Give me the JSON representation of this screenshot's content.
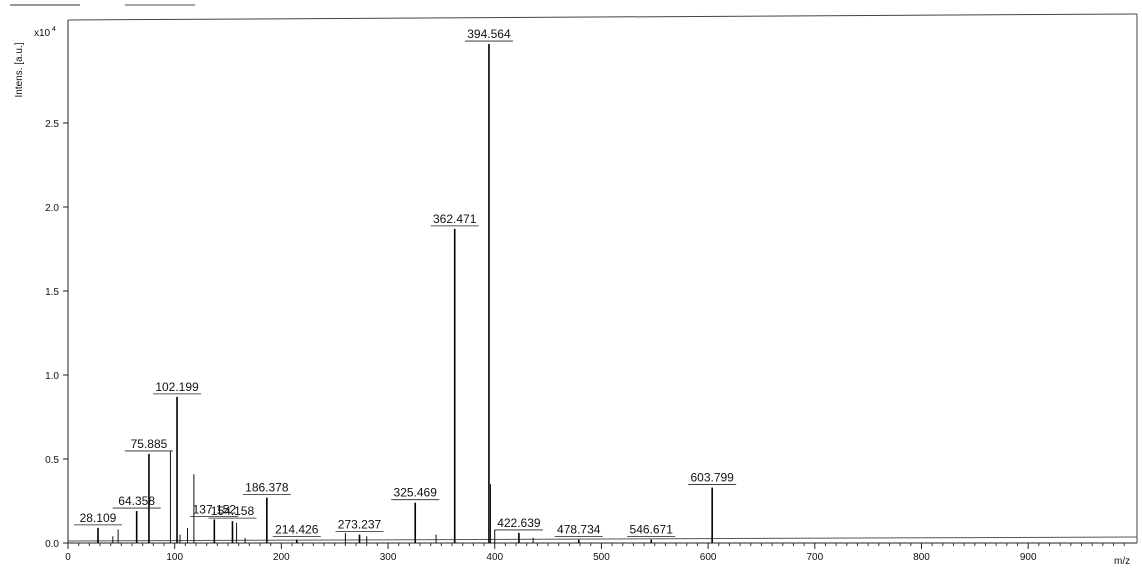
{
  "chart_data": {
    "type": "line",
    "title": "",
    "xlabel": "m/z",
    "ylabel": "Intens. [a.u.]",
    "y_multiplier": "x10",
    "y_multiplier_exp": "4",
    "xlim": [
      0,
      1000
    ],
    "ylim": [
      0,
      3.0
    ],
    "x_ticks": [
      0,
      100,
      200,
      300,
      400,
      500,
      600,
      700,
      800,
      900
    ],
    "x_tick_labels": [
      "0",
      "100",
      "200",
      "300",
      "400",
      "500",
      "600",
      "700",
      "800",
      "900"
    ],
    "y_ticks": [
      0.0,
      0.5,
      1.0,
      1.5,
      2.0,
      2.5
    ],
    "y_tick_labels": [
      "0.0",
      "0.5",
      "1.0",
      "1.5",
      "2.0",
      "2.5"
    ],
    "grid": false,
    "peaks": [
      {
        "mz": 28.109,
        "intensity": 0.09,
        "label": "28.109"
      },
      {
        "mz": 64.358,
        "intensity": 0.19,
        "label": "64.358"
      },
      {
        "mz": 75.885,
        "intensity": 0.53,
        "label": "75.885"
      },
      {
        "mz": 102.199,
        "intensity": 0.87,
        "label": "102.199"
      },
      {
        "mz": 137.152,
        "intensity": 0.14,
        "label": "137.152"
      },
      {
        "mz": 154.158,
        "intensity": 0.13,
        "label": "154.158"
      },
      {
        "mz": 186.378,
        "intensity": 0.27,
        "label": "186.378"
      },
      {
        "mz": 214.426,
        "intensity": 0.02,
        "label": "214.426"
      },
      {
        "mz": 273.237,
        "intensity": 0.05,
        "label": "273.237"
      },
      {
        "mz": 325.469,
        "intensity": 0.24,
        "label": "325.469"
      },
      {
        "mz": 362.471,
        "intensity": 1.87,
        "label": "362.471"
      },
      {
        "mz": 394.564,
        "intensity": 2.97,
        "label": "394.564"
      },
      {
        "mz": 422.639,
        "intensity": 0.06,
        "label": "422.639"
      },
      {
        "mz": 478.734,
        "intensity": 0.02,
        "label": "478.734"
      },
      {
        "mz": 546.671,
        "intensity": 0.02,
        "label": "546.671"
      },
      {
        "mz": 603.799,
        "intensity": 0.33,
        "label": "603.799"
      }
    ],
    "minor_peaks": [
      {
        "mz": 42,
        "intensity": 0.04
      },
      {
        "mz": 47,
        "intensity": 0.08
      },
      {
        "mz": 96,
        "intensity": 0.55
      },
      {
        "mz": 105,
        "intensity": 0.05
      },
      {
        "mz": 112,
        "intensity": 0.09
      },
      {
        "mz": 118,
        "intensity": 0.41
      },
      {
        "mz": 158,
        "intensity": 0.12
      },
      {
        "mz": 166,
        "intensity": 0.03
      },
      {
        "mz": 260,
        "intensity": 0.06
      },
      {
        "mz": 280,
        "intensity": 0.04
      },
      {
        "mz": 345,
        "intensity": 0.05
      },
      {
        "mz": 396,
        "intensity": 0.35
      },
      {
        "mz": 400,
        "intensity": 0.08
      },
      {
        "mz": 436,
        "intensity": 0.03
      }
    ]
  }
}
